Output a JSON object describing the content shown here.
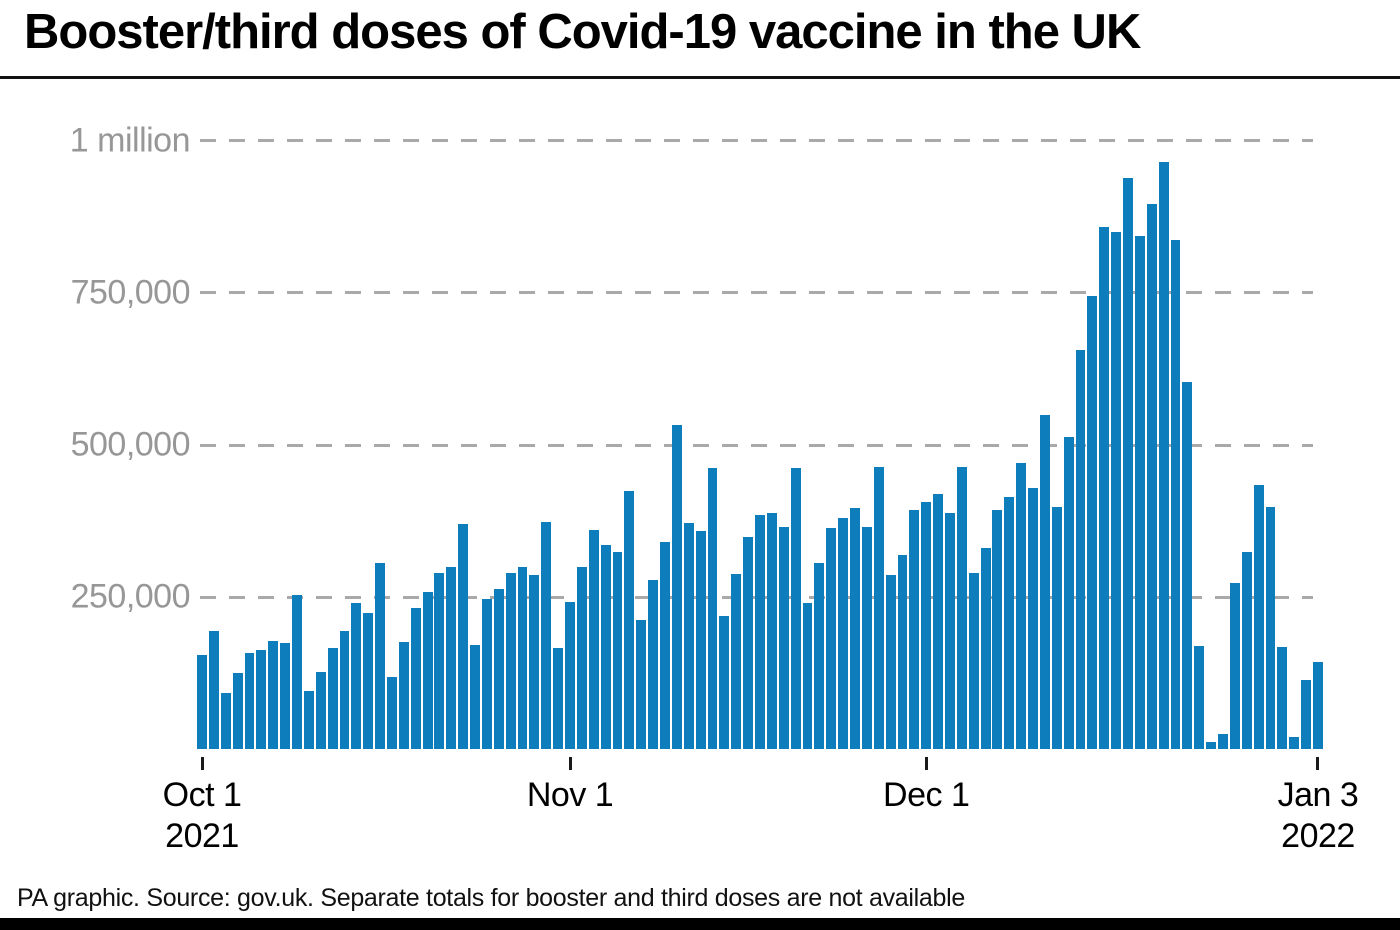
{
  "title": "Booster/third doses of Covid-19 vaccine in the UK",
  "footer": "PA graphic. Source: gov.uk. Separate totals for booster and third doses are not available",
  "colors": {
    "bar": "#0e7dbc",
    "grid": "#a9a9a9",
    "y_label": "#979797",
    "text": "#000000"
  },
  "chart_data": {
    "type": "bar",
    "title": "Booster/third doses of Covid-19 vaccine in the UK",
    "xlabel": "",
    "ylabel": "",
    "ylim": [
      0,
      1020000
    ],
    "grid": "dashed-horizontal",
    "legend": "none",
    "start_date": "2021-10-01",
    "end_date": "2022-01-03",
    "y_ticks": [
      {
        "label": "1 million",
        "value": 1000000
      },
      {
        "label": "750,000",
        "value": 750000
      },
      {
        "label": "500,000",
        "value": 500000
      },
      {
        "label": "250,000",
        "value": 250000
      }
    ],
    "x_ticks": [
      {
        "label": "Oct 1",
        "sublabel": "2021",
        "day_index": 0
      },
      {
        "label": "Nov 1",
        "sublabel": "",
        "day_index": 31
      },
      {
        "label": "Dec 1",
        "sublabel": "",
        "day_index": 61
      },
      {
        "label": "Jan 3",
        "sublabel": "2022",
        "day_index": 94
      }
    ],
    "series": [
      {
        "name": "Daily booster/third doses",
        "values": [
          155000,
          195000,
          92000,
          126000,
          158000,
          164000,
          179000,
          175000,
          253000,
          96000,
          127000,
          166000,
          195000,
          241000,
          224000,
          307000,
          119000,
          177000,
          233000,
          258000,
          290000,
          299000,
          370000,
          172000,
          247000,
          264000,
          290000,
          300000,
          287000,
          374000,
          166000,
          243000,
          300000,
          360000,
          336000,
          325000,
          424000,
          213000,
          279000,
          341000,
          533000,
          372000,
          359000,
          463000,
          219000,
          289000,
          349000,
          386000,
          388000,
          365000,
          463000,
          241000,
          307000,
          364000,
          380000,
          396000,
          366000,
          464000,
          287000,
          319000,
          393000,
          407000,
          420000,
          389000,
          464000,
          290000,
          331000,
          393000,
          415000,
          471000,
          430000,
          550000,
          398000,
          513000,
          656000,
          745000,
          858000,
          850000,
          938000,
          843000,
          896000,
          965000,
          837000,
          604000,
          170000,
          13000,
          25000,
          274000,
          325000,
          434000,
          398000,
          169000,
          21000,
          114000,
          144000
        ]
      }
    ]
  }
}
